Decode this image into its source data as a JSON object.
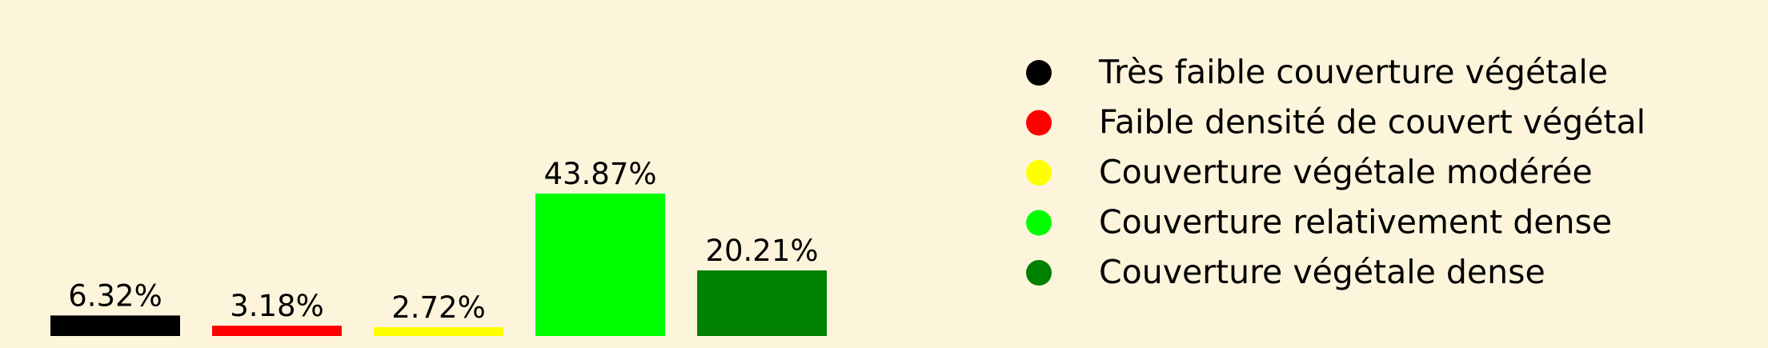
{
  "chart_data": {
    "type": "bar",
    "categories": [
      "Très faible couverture végétale",
      "Faible densité de couvert végétal",
      "Couverture végétale modérée",
      "Couverture relativement dense",
      "Couverture végétale dense"
    ],
    "values": [
      6.32,
      3.18,
      2.72,
      43.87,
      20.21
    ],
    "labels": [
      "6.32%",
      "3.18%",
      "2.72%",
      "43.87%",
      "20.21%"
    ],
    "colors": [
      "#000000",
      "#ff0000",
      "#ffff00",
      "#00ff00",
      "#008000"
    ],
    "legend_position": "right",
    "grid": false,
    "axes_visible": false
  }
}
